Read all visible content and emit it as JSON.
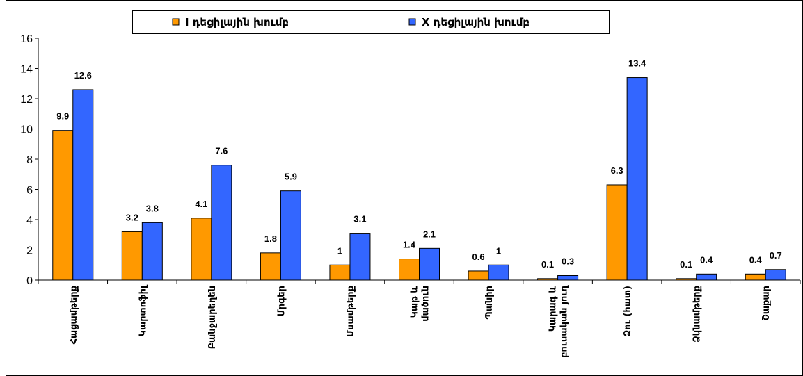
{
  "chart_data": {
    "type": "bar",
    "categories": [
      "Հացամթերք",
      "Կարտոֆիլ",
      "Բանջարեղեն",
      "Մրգեր",
      "Մսամթերք",
      "Կաթ և\nմածուն",
      "Պանիր",
      "Կարագ և\nբուսական յուղ",
      "Ձու (հատ)",
      "Ձկնամթերք",
      "Շաքար"
    ],
    "series": [
      {
        "name": "I դեցիլային խումբ",
        "color": "#ff9900",
        "values": [
          9.9,
          3.2,
          4.1,
          1.8,
          1,
          1.4,
          0.6,
          0.1,
          6.3,
          0.1,
          0.4
        ]
      },
      {
        "name": "X դեցիլային խումբ",
        "color": "#3366ff",
        "values": [
          12.6,
          3.8,
          7.6,
          5.9,
          3.1,
          2.1,
          1,
          0.3,
          13.4,
          0.4,
          0.7
        ]
      }
    ],
    "ylim": [
      0,
      16
    ],
    "yticks": [
      0,
      2,
      4,
      6,
      8,
      10,
      12,
      14,
      16
    ],
    "legend": "top"
  }
}
